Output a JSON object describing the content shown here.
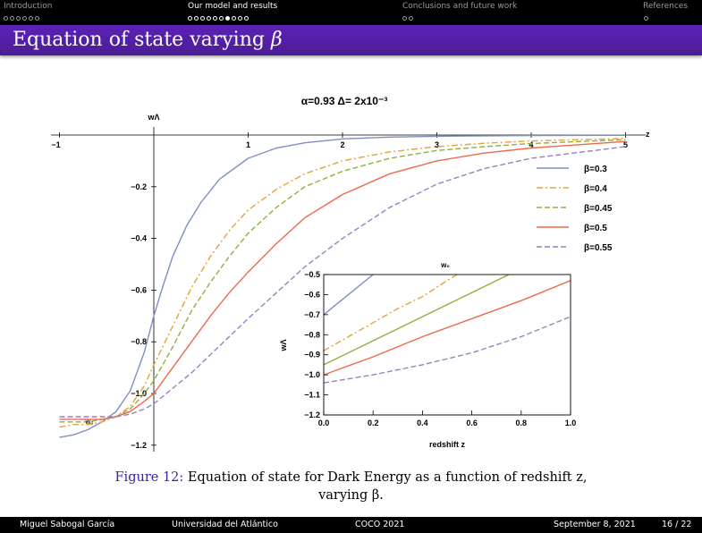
{
  "nav": {
    "sections": [
      {
        "label": "Introduction",
        "dots": 6,
        "filled": -1
      },
      {
        "label": "Our model and results",
        "dots": 10,
        "filled": 6
      },
      {
        "label": "Conclusions and future work",
        "dots": 2,
        "filled": -1
      },
      {
        "label": "References",
        "dots": 1,
        "filled": -1
      }
    ],
    "active_index": 1
  },
  "slide": {
    "title_text": "Equation of state varying ",
    "title_symbol": "β"
  },
  "chart_data": [
    {
      "type": "line",
      "title": "α=0.93  Δ= 2x10⁻³",
      "xlabel": "z",
      "ylabel": "wΛ",
      "xlim": [
        -1,
        5
      ],
      "ylim": [
        -1.25,
        0
      ],
      "xticks": [
        "−1",
        "1",
        "2",
        "3",
        "4",
        "5"
      ],
      "yticks": [
        "−0.2",
        "−0.4",
        "−0.6",
        "−0.8",
        "−1.0",
        "−1.2"
      ],
      "w0_marker": "w₀",
      "legend_position": "right",
      "series": [
        {
          "name": "β=0.3",
          "color": "#7f8fc2",
          "dash": "solid",
          "x": [
            -1,
            -0.85,
            -0.7,
            -0.55,
            -0.4,
            -0.25,
            -0.1,
            0,
            0.1,
            0.2,
            0.35,
            0.5,
            0.7,
            1.0,
            1.3,
            1.6,
            2.0,
            2.5,
            3.0,
            3.5,
            4.0,
            5.0
          ],
          "y": [
            -1.17,
            -1.16,
            -1.14,
            -1.11,
            -1.07,
            -0.99,
            -0.84,
            -0.7,
            -0.58,
            -0.47,
            -0.35,
            -0.26,
            -0.17,
            -0.09,
            -0.05,
            -0.03,
            -0.015,
            -0.008,
            -0.005,
            -0.003,
            -0.002,
            -0.001
          ]
        },
        {
          "name": "β=0.4",
          "color": "#e3a33a",
          "dash": "dashdot",
          "x": [
            -1,
            -0.85,
            -0.7,
            -0.55,
            -0.4,
            -0.25,
            -0.1,
            0,
            0.2,
            0.4,
            0.6,
            0.8,
            1.0,
            1.3,
            1.6,
            2.0,
            2.5,
            3.0,
            3.5,
            4.0,
            5.0
          ],
          "y": [
            -1.13,
            -1.12,
            -1.12,
            -1.11,
            -1.09,
            -1.05,
            -0.97,
            -0.89,
            -0.74,
            -0.59,
            -0.47,
            -0.37,
            -0.29,
            -0.21,
            -0.15,
            -0.1,
            -0.065,
            -0.045,
            -0.032,
            -0.023,
            -0.013
          ]
        },
        {
          "name": "β=0.45",
          "color": "#93ad3f",
          "dash": "dash",
          "x": [
            -1,
            -0.85,
            -0.7,
            -0.55,
            -0.4,
            -0.25,
            -0.1,
            0,
            0.2,
            0.4,
            0.6,
            0.8,
            1.0,
            1.3,
            1.6,
            2.0,
            2.5,
            3.0,
            3.5,
            4.0,
            5.0
          ],
          "y": [
            -1.11,
            -1.11,
            -1.11,
            -1.1,
            -1.09,
            -1.06,
            -1.0,
            -0.95,
            -0.82,
            -0.68,
            -0.57,
            -0.47,
            -0.38,
            -0.28,
            -0.2,
            -0.14,
            -0.09,
            -0.06,
            -0.045,
            -0.033,
            -0.018
          ]
        },
        {
          "name": "β=0.5",
          "color": "#ec6a4d",
          "dash": "solid",
          "x": [
            -1,
            -0.85,
            -0.7,
            -0.55,
            -0.4,
            -0.25,
            -0.1,
            0,
            0.2,
            0.4,
            0.6,
            0.8,
            1.0,
            1.3,
            1.6,
            2.0,
            2.5,
            3.0,
            3.5,
            4.0,
            5.0
          ],
          "y": [
            -1.1,
            -1.1,
            -1.1,
            -1.1,
            -1.09,
            -1.07,
            -1.03,
            -1.0,
            -0.9,
            -0.8,
            -0.7,
            -0.61,
            -0.53,
            -0.42,
            -0.32,
            -0.23,
            -0.15,
            -0.1,
            -0.07,
            -0.05,
            -0.025
          ]
        },
        {
          "name": "β=0.55",
          "color": "#9b7fc2",
          "dash": "dash",
          "x": [
            -1,
            -0.85,
            -0.7,
            -0.55,
            -0.4,
            -0.25,
            -0.1,
            0,
            0.2,
            0.4,
            0.6,
            0.8,
            1.0,
            1.3,
            1.6,
            2.0,
            2.5,
            3.0,
            3.5,
            4.0,
            5.0
          ],
          "y": [
            -1.09,
            -1.09,
            -1.09,
            -1.09,
            -1.09,
            -1.08,
            -1.06,
            -1.04,
            -0.98,
            -0.92,
            -0.85,
            -0.78,
            -0.71,
            -0.61,
            -0.51,
            -0.4,
            -0.28,
            -0.19,
            -0.13,
            -0.09,
            -0.045
          ]
        }
      ]
    },
    {
      "type": "line",
      "title": "w₀",
      "xlabel": "redshift z",
      "ylabel": "wΛ",
      "xlim": [
        0,
        1
      ],
      "ylim": [
        -1.2,
        -0.5
      ],
      "xticks": [
        "0.0",
        "0.2",
        "0.4",
        "0.6",
        "0.8",
        "1.0"
      ],
      "yticks": [
        "−0.5",
        "−0.6",
        "−0.7",
        "−0.8",
        "−0.9",
        "−1.0",
        "−1.1",
        "−1.2"
      ],
      "series": [
        {
          "color": "#7f8fc2",
          "dash": "solid",
          "x": [
            0,
            0.05,
            0.1,
            0.15,
            0.2
          ],
          "y": [
            -0.7,
            -0.65,
            -0.6,
            -0.55,
            -0.5
          ]
        },
        {
          "color": "#e3a33a",
          "dash": "dashdot",
          "x": [
            0,
            0.1,
            0.2,
            0.3,
            0.4,
            0.5,
            0.54
          ],
          "y": [
            -0.88,
            -0.81,
            -0.74,
            -0.67,
            -0.61,
            -0.53,
            -0.5
          ]
        },
        {
          "color": "#93ad3f",
          "dash": "solid",
          "x": [
            0,
            0.15,
            0.3,
            0.45,
            0.6,
            0.75
          ],
          "y": [
            -0.95,
            -0.86,
            -0.77,
            -0.68,
            -0.59,
            -0.5
          ]
        },
        {
          "color": "#ec6a4d",
          "dash": "solid",
          "x": [
            0,
            0.2,
            0.4,
            0.6,
            0.8,
            1.0
          ],
          "y": [
            -1.0,
            -0.91,
            -0.81,
            -0.72,
            -0.63,
            -0.53
          ]
        },
        {
          "color": "#9b7fc2",
          "dash": "dash",
          "x": [
            0,
            0.2,
            0.4,
            0.6,
            0.8,
            1.0
          ],
          "y": [
            -1.04,
            -1.0,
            -0.95,
            -0.89,
            -0.81,
            -0.71
          ]
        }
      ]
    }
  ],
  "caption": {
    "label": "Figure 12:",
    "line1": " Equation of state for Dark Energy as a function of redshift z,",
    "line2": "varying β."
  },
  "footer": {
    "author": "Miguel Sabogal García",
    "institution": "Universidad del Atlántico",
    "event": "COCO 2021",
    "date": "September 8, 2021",
    "page": "16 / 22"
  }
}
